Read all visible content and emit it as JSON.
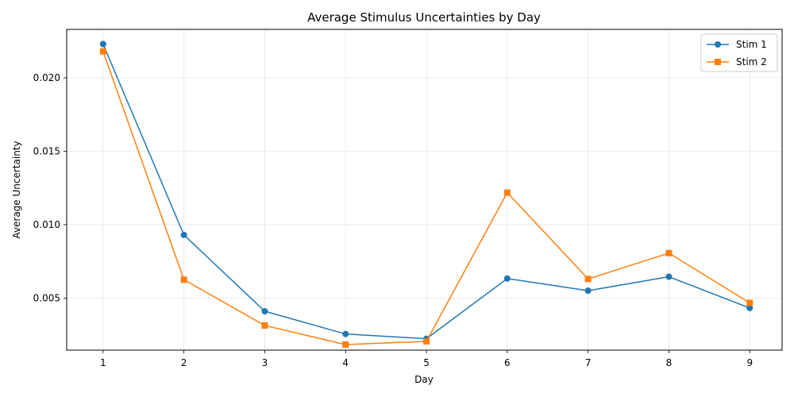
{
  "chart_data": {
    "type": "line",
    "title": "Average Stimulus Uncertainties by Day",
    "xlabel": "Day",
    "ylabel": "Average Uncertainty",
    "x": [
      1,
      2,
      3,
      4,
      5,
      6,
      7,
      8,
      9
    ],
    "xticks": [
      "1",
      "2",
      "3",
      "4",
      "5",
      "6",
      "7",
      "8",
      "9"
    ],
    "yticks": [
      0.005,
      0.01,
      0.015,
      0.02
    ],
    "ytick_labels": [
      "0.005",
      "0.010",
      "0.015",
      "0.020"
    ],
    "xlim": [
      0.55,
      9.4
    ],
    "ylim": [
      0.00145,
      0.0233
    ],
    "grid": true,
    "legend_position": "top-right",
    "series": [
      {
        "name": "Stim 1",
        "marker": "circle",
        "color": "#1f77b4",
        "values": [
          0.0223,
          0.0093,
          0.0041,
          0.00255,
          0.00223,
          0.00633,
          0.0055,
          0.00645,
          0.00432
        ]
      },
      {
        "name": "Stim 2",
        "marker": "square",
        "color": "#ff7f0e",
        "values": [
          0.0218,
          0.00625,
          0.00313,
          0.00183,
          0.00205,
          0.01218,
          0.0063,
          0.00806,
          0.00467
        ]
      }
    ]
  }
}
